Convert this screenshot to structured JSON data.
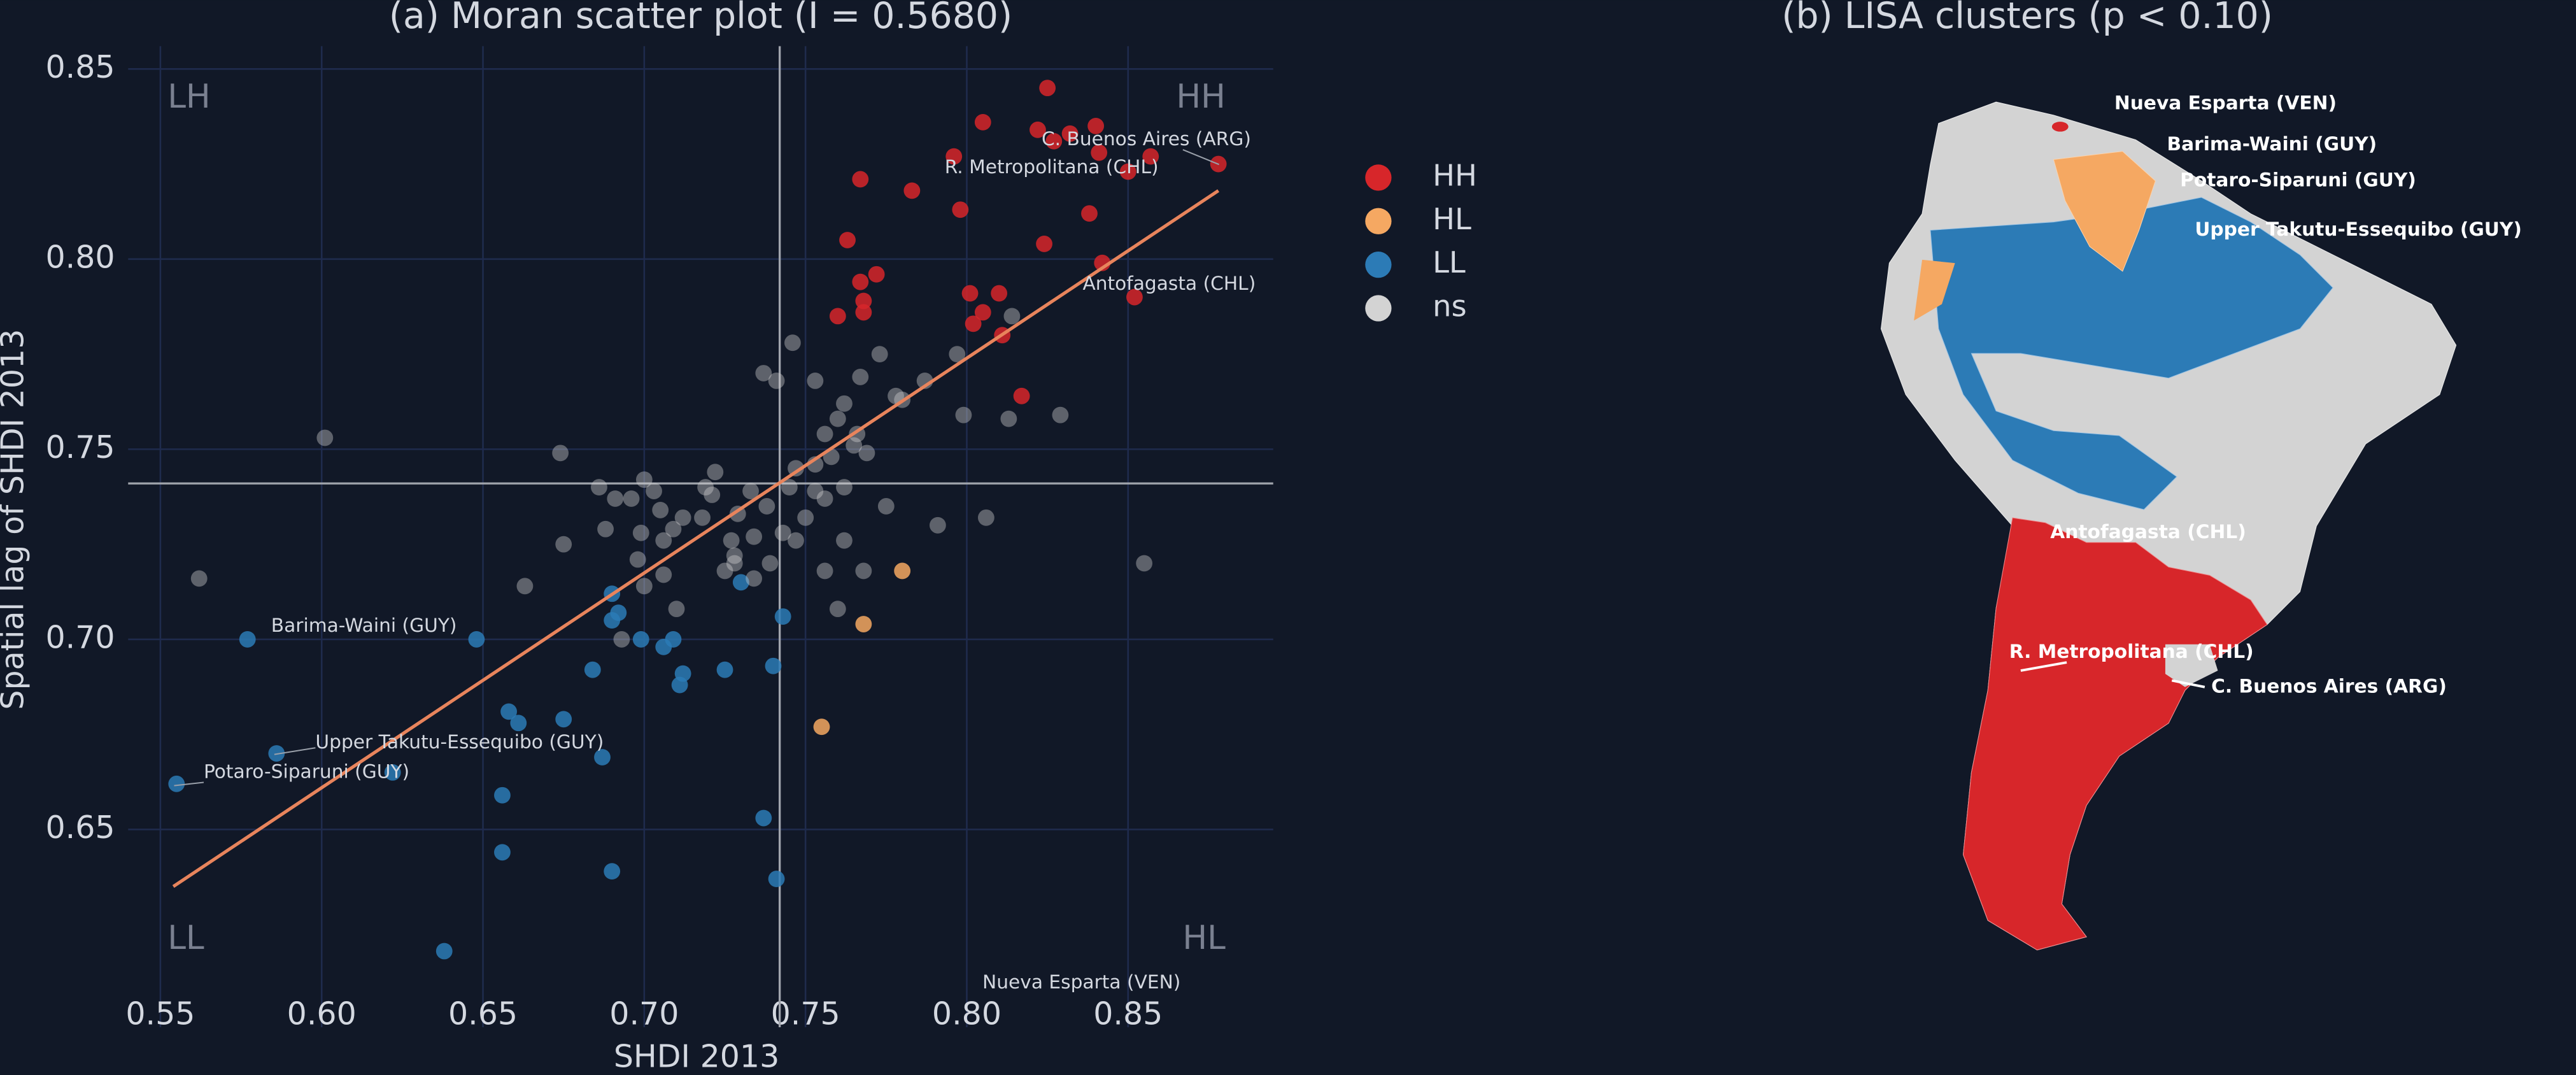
{
  "chart_data": [
    {
      "type": "scatter",
      "title": "(a) Moran scatter plot (I = 0.5680)",
      "xlabel": "SHDI 2013",
      "ylabel": "Spatial lag of SHDI 2013",
      "xlim": [
        0.54,
        0.895
      ],
      "ylim": [
        0.598,
        0.856
      ],
      "xticks": [
        0.55,
        {
          "value": 0.6,
          "label": "0.60"
        },
        0.65,
        {
          "value": 0.7,
          "label": "0.70"
        },
        0.75,
        {
          "value": 0.8,
          "label": "0.80"
        },
        0.85
      ],
      "yticks": [
        0.65,
        {
          "value": 0.7,
          "label": "0.70"
        },
        0.75,
        {
          "value": 0.8,
          "label": "0.80"
        },
        0.85
      ],
      "grid": true,
      "reference_lines": {
        "x": 0.742,
        "y": 0.741
      },
      "fit": {
        "color": "#e8845c",
        "x": [
          0.554,
          0.878
        ],
        "y": [
          0.635,
          0.818
        ]
      },
      "quadrant_labels": [
        "LH",
        "HH",
        "LL",
        "HL"
      ],
      "series": [
        {
          "name": "HH",
          "color": "#d7262a",
          "alpha": 0.85,
          "x": [
            0.825,
            0.805,
            0.822,
            0.84,
            0.832,
            0.827,
            0.857,
            0.878,
            0.85,
            0.841,
            0.796,
            0.767,
            0.783,
            0.798,
            0.838,
            0.763,
            0.824,
            0.772,
            0.767,
            0.842,
            0.801,
            0.81,
            0.852,
            0.768,
            0.768,
            0.76,
            0.805,
            0.802,
            0.811,
            0.817
          ],
          "y": [
            0.845,
            0.836,
            0.834,
            0.835,
            0.833,
            0.831,
            0.827,
            0.825,
            0.823,
            0.828,
            0.827,
            0.821,
            0.818,
            0.813,
            0.812,
            0.805,
            0.804,
            0.796,
            0.794,
            0.799,
            0.791,
            0.791,
            0.79,
            0.789,
            0.786,
            0.785,
            0.786,
            0.783,
            0.78,
            0.764
          ]
        },
        {
          "name": "HL",
          "color": "#f5a862",
          "alpha": 0.85,
          "x": [
            0.78,
            0.768,
            0.755
          ],
          "y": [
            0.718,
            0.704,
            0.677
          ]
        },
        {
          "name": "LL",
          "color": "#2c7bb6",
          "alpha": 0.85,
          "x": [
            0.555,
            0.577,
            0.586,
            0.622,
            0.648,
            0.638,
            0.656,
            0.656,
            0.658,
            0.661,
            0.675,
            0.687,
            0.69,
            0.684,
            0.69,
            0.69,
            0.692,
            0.699,
            0.706,
            0.709,
            0.712,
            0.711,
            0.725,
            0.73,
            0.737,
            0.74,
            0.743,
            0.741
          ],
          "y": [
            0.662,
            0.7,
            0.67,
            0.665,
            0.7,
            0.618,
            0.644,
            0.659,
            0.681,
            0.678,
            0.679,
            0.669,
            0.639,
            0.692,
            0.712,
            0.705,
            0.707,
            0.7,
            0.698,
            0.7,
            0.691,
            0.688,
            0.692,
            0.715,
            0.653,
            0.693,
            0.706,
            0.637
          ]
        },
        {
          "name": "ns",
          "color": "#d3d3d3",
          "alpha": 0.4,
          "x": [
            0.562,
            0.601,
            0.674,
            0.663,
            0.675,
            0.686,
            0.688,
            0.691,
            0.696,
            0.699,
            0.7,
            0.703,
            0.698,
            0.7,
            0.693,
            0.706,
            0.709,
            0.706,
            0.71,
            0.712,
            0.705,
            0.718,
            0.719,
            0.722,
            0.721,
            0.727,
            0.728,
            0.728,
            0.725,
            0.729,
            0.734,
            0.738,
            0.733,
            0.737,
            0.741,
            0.746,
            0.753,
            0.745,
            0.747,
            0.743,
            0.747,
            0.75,
            0.753,
            0.756,
            0.753,
            0.758,
            0.756,
            0.76,
            0.762,
            0.765,
            0.767,
            0.769,
            0.766,
            0.773,
            0.778,
            0.78,
            0.787,
            0.797,
            0.799,
            0.814,
            0.813,
            0.829,
            0.806,
            0.791,
            0.775,
            0.762,
            0.76,
            0.756,
            0.762,
            0.768,
            0.855,
            0.739,
            0.734
          ],
          "y": [
            0.716,
            0.753,
            0.749,
            0.714,
            0.725,
            0.74,
            0.729,
            0.737,
            0.737,
            0.728,
            0.742,
            0.739,
            0.721,
            0.714,
            0.7,
            0.726,
            0.729,
            0.717,
            0.708,
            0.732,
            0.734,
            0.732,
            0.74,
            0.744,
            0.738,
            0.726,
            0.72,
            0.722,
            0.718,
            0.733,
            0.727,
            0.735,
            0.739,
            0.77,
            0.768,
            0.778,
            0.768,
            0.74,
            0.745,
            0.728,
            0.726,
            0.732,
            0.739,
            0.737,
            0.746,
            0.748,
            0.754,
            0.758,
            0.762,
            0.751,
            0.769,
            0.749,
            0.754,
            0.775,
            0.764,
            0.763,
            0.768,
            0.775,
            0.759,
            0.785,
            0.758,
            0.759,
            0.732,
            0.73,
            0.735,
            0.74,
            0.708,
            0.718,
            0.726,
            0.718,
            0.72,
            0.72,
            0.716
          ]
        }
      ],
      "annotations": [
        "C. Buenos Aires (ARG)",
        "R. Metropolitana (CHL)",
        "Antofagasta (CHL)",
        "Barima-Waini (GUY)",
        "Upper Takutu-Essequibo (GUY)",
        "Potaro-Siparuni (GUY)",
        "Nueva Esparta (VEN)"
      ]
    },
    {
      "type": "map",
      "title": "(b) LISA clusters (p < 0.10)",
      "labels": [
        "Nueva Esparta (VEN)",
        "Barima-Waini (GUY)",
        "Potaro-Siparuni (GUY)",
        "Upper Takutu-Essequibo (GUY)",
        "Antofagasta (CHL)",
        "R. Metropolitana (CHL)",
        "C. Buenos Aires (ARG)"
      ]
    }
  ]
}
